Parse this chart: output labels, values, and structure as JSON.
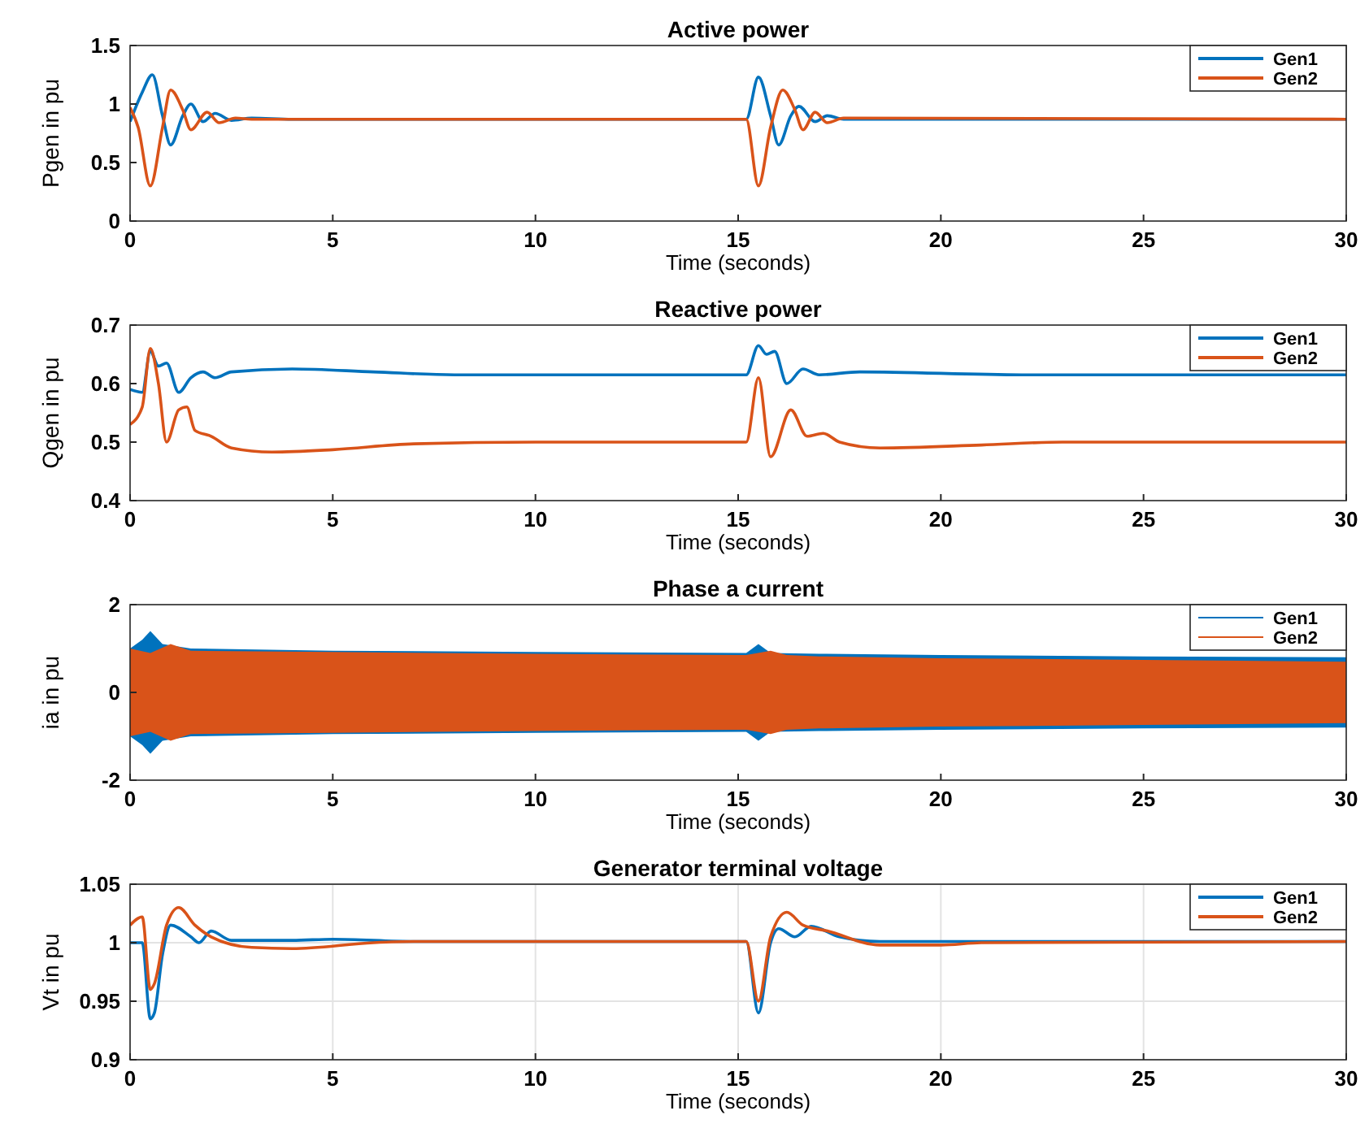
{
  "chart_data": [
    {
      "type": "line",
      "title": "Active power",
      "xlabel": "Time (seconds)",
      "ylabel": "Pgen in pu",
      "xlim": [
        0,
        30
      ],
      "xticks": [
        0,
        5,
        10,
        15,
        20,
        25,
        30
      ],
      "ylim": [
        0,
        1.5
      ],
      "yticks": [
        0,
        0.5,
        1,
        1.5
      ],
      "grid": false,
      "legend": "top right",
      "series": [
        {
          "name": "Gen1",
          "color": "#0072bd",
          "x": [
            0,
            0.3,
            0.55,
            0.8,
            1.0,
            1.3,
            1.5,
            1.8,
            2.1,
            2.5,
            3,
            4,
            15.2,
            15.5,
            15.8,
            16.0,
            16.3,
            16.5,
            16.9,
            17.2,
            17.6,
            30
          ],
          "values": [
            0.85,
            1.1,
            1.25,
            0.9,
            0.65,
            0.9,
            1.0,
            0.85,
            0.92,
            0.86,
            0.88,
            0.87,
            0.87,
            1.23,
            0.9,
            0.65,
            0.9,
            0.98,
            0.85,
            0.9,
            0.87,
            0.87
          ]
        },
        {
          "name": "Gen2",
          "color": "#d95319",
          "x": [
            0,
            0.2,
            0.5,
            0.8,
            1.0,
            1.3,
            1.5,
            1.9,
            2.2,
            2.6,
            3,
            15.2,
            15.5,
            15.8,
            16.1,
            16.4,
            16.6,
            16.9,
            17.2,
            17.6,
            30
          ],
          "values": [
            0.97,
            0.8,
            0.3,
            0.8,
            1.12,
            0.95,
            0.78,
            0.93,
            0.84,
            0.88,
            0.87,
            0.87,
            0.3,
            0.8,
            1.12,
            0.95,
            0.78,
            0.93,
            0.84,
            0.88,
            0.87
          ]
        }
      ]
    },
    {
      "type": "line",
      "title": "Reactive power",
      "xlabel": "Time (seconds)",
      "ylabel": "Qgen in pu",
      "xlim": [
        0,
        30
      ],
      "xticks": [
        0,
        5,
        10,
        15,
        20,
        25,
        30
      ],
      "ylim": [
        0.4,
        0.7
      ],
      "yticks": [
        0.4,
        0.5,
        0.6,
        0.7
      ],
      "grid": false,
      "legend": "top right",
      "series": [
        {
          "name": "Gen1",
          "color": "#0072bd",
          "x": [
            0,
            0.3,
            0.5,
            0.7,
            0.9,
            1.2,
            1.5,
            1.8,
            2.1,
            2.5,
            4,
            6,
            8,
            15.2,
            15.5,
            15.7,
            15.9,
            16.2,
            16.6,
            17,
            18,
            22,
            30
          ],
          "values": [
            0.59,
            0.585,
            0.655,
            0.63,
            0.635,
            0.585,
            0.61,
            0.62,
            0.61,
            0.62,
            0.625,
            0.62,
            0.615,
            0.615,
            0.665,
            0.65,
            0.655,
            0.6,
            0.625,
            0.615,
            0.62,
            0.615,
            0.615
          ]
        },
        {
          "name": "Gen2",
          "color": "#d95319",
          "x": [
            0,
            0.3,
            0.5,
            0.7,
            0.9,
            1.2,
            1.4,
            1.6,
            2,
            2.5,
            3.5,
            5,
            7,
            10,
            15.2,
            15.5,
            15.8,
            16.3,
            16.7,
            17.1,
            17.5,
            18.5,
            21,
            23,
            30
          ],
          "values": [
            0.53,
            0.56,
            0.66,
            0.6,
            0.5,
            0.555,
            0.56,
            0.52,
            0.51,
            0.49,
            0.483,
            0.487,
            0.497,
            0.5,
            0.5,
            0.61,
            0.475,
            0.555,
            0.51,
            0.515,
            0.5,
            0.49,
            0.495,
            0.5,
            0.5
          ]
        }
      ]
    },
    {
      "type": "line",
      "title": "Phase a current",
      "xlabel": "Time (seconds)",
      "ylabel": "ia in pu",
      "xlim": [
        0,
        30
      ],
      "xticks": [
        0,
        5,
        10,
        15,
        20,
        25,
        30
      ],
      "ylim": [
        -2,
        2
      ],
      "yticks": [
        -2,
        0,
        2
      ],
      "grid": false,
      "legend": "top right",
      "series": [
        {
          "name": "Gen1",
          "color": "#0072bd",
          "x": [
            0,
            0.3,
            0.5,
            0.8,
            1.5,
            5,
            10,
            15.2,
            15.5,
            15.8,
            17,
            20,
            25,
            30
          ],
          "values": [
            null,
            null,
            null,
            null,
            null,
            null,
            null,
            null,
            null,
            null,
            null,
            null,
            null,
            null
          ],
          "upper": [
            1.0,
            1.2,
            1.4,
            1.1,
            1.0,
            0.95,
            0.92,
            0.9,
            1.1,
            0.9,
            0.88,
            0.85,
            0.82,
            0.8
          ],
          "lower": [
            -1.0,
            -1.2,
            -1.4,
            -1.1,
            -1.0,
            -0.95,
            -0.92,
            -0.9,
            -1.1,
            -0.9,
            -0.88,
            -0.85,
            -0.82,
            -0.8
          ]
        },
        {
          "name": "Gen2",
          "color": "#d95319",
          "x": [
            0,
            0.5,
            1.0,
            1.5,
            5,
            10,
            15.2,
            15.8,
            16.2,
            17,
            20,
            25,
            30
          ],
          "values": [
            null,
            null,
            null,
            null,
            null,
            null,
            null,
            null,
            null,
            null,
            null,
            null,
            null
          ],
          "upper": [
            1.0,
            0.9,
            1.1,
            0.95,
            0.92,
            0.88,
            0.85,
            0.95,
            0.85,
            0.82,
            0.78,
            0.74,
            0.7
          ],
          "lower": [
            -1.0,
            -0.9,
            -1.1,
            -0.95,
            -0.92,
            -0.88,
            -0.85,
            -0.95,
            -0.85,
            -0.82,
            -0.78,
            -0.74,
            -0.7
          ]
        }
      ]
    },
    {
      "type": "line",
      "title": "Generator terminal voltage",
      "xlabel": "Time (seconds)",
      "ylabel": "Vt in pu",
      "xlim": [
        0,
        30
      ],
      "xticks": [
        0,
        5,
        10,
        15,
        20,
        25,
        30
      ],
      "ylim": [
        0.9,
        1.05
      ],
      "yticks": [
        0.9,
        0.95,
        1,
        1.05
      ],
      "grid": true,
      "legend": "top right",
      "series": [
        {
          "name": "Gen1",
          "color": "#0072bd",
          "x": [
            0,
            0.3,
            0.5,
            0.6,
            0.8,
            1.0,
            1.5,
            1.7,
            2,
            2.5,
            4,
            5,
            7,
            15.2,
            15.5,
            15.8,
            16.0,
            16.4,
            16.8,
            17.5,
            18.5,
            30
          ],
          "values": [
            1.0,
            1.0,
            0.935,
            0.94,
            0.99,
            1.015,
            1.005,
            1.0,
            1.01,
            1.002,
            1.002,
            1.003,
            1.001,
            1.001,
            0.94,
            1.0,
            1.012,
            1.005,
            1.014,
            1.005,
            1.001,
            1.001
          ]
        },
        {
          "name": "Gen2",
          "color": "#d95319",
          "x": [
            0,
            0.3,
            0.5,
            0.6,
            0.9,
            1.2,
            1.6,
            2,
            3,
            4,
            6,
            7,
            15.2,
            15.5,
            15.8,
            16.2,
            16.6,
            17.2,
            18.5,
            20,
            21,
            30
          ],
          "values": [
            1.015,
            1.022,
            0.96,
            0.965,
            1.015,
            1.03,
            1.015,
            1.005,
            0.996,
            0.995,
            1.0,
            1.001,
            1.001,
            0.95,
            1.005,
            1.026,
            1.015,
            1.01,
            0.998,
            0.998,
            1.0,
            1.001
          ]
        }
      ]
    }
  ]
}
